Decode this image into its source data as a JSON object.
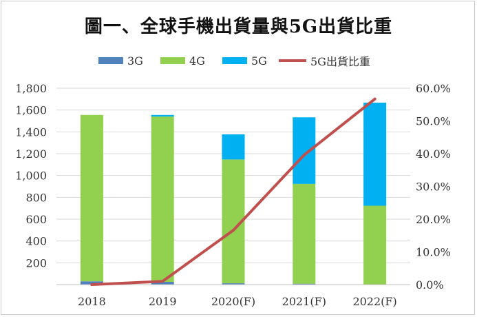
{
  "chart_data": {
    "type": "bar",
    "title": "圖一、全球手機出貨量與5G出貨比重",
    "categories": [
      "2018",
      "2019",
      "2020(F)",
      "2021(F)",
      "2022(F)"
    ],
    "series": [
      {
        "name": "3G",
        "kind": "stacked-bar",
        "axis": "left",
        "color": "#4f81bd",
        "values": [
          30,
          25,
          12,
          8,
          3
        ]
      },
      {
        "name": "4G",
        "kind": "stacked-bar",
        "axis": "left",
        "color": "#92d050",
        "values": [
          1525,
          1515,
          1135,
          915,
          720
        ]
      },
      {
        "name": "5G",
        "kind": "stacked-bar",
        "axis": "left",
        "color": "#00b0f0",
        "values": [
          0,
          15,
          230,
          610,
          945
        ]
      },
      {
        "name": "5G出貨比重",
        "kind": "line",
        "axis": "right",
        "color": "#c0504d",
        "values": [
          0.0,
          0.01,
          0.166,
          0.396,
          0.567
        ]
      }
    ],
    "y_left": {
      "min": 0,
      "max": 1800,
      "ticks": [
        "",
        "200",
        "400",
        "600",
        "800",
        "1,000",
        "1,200",
        "1,400",
        "1,600",
        "1,800"
      ]
    },
    "y_right": {
      "min": 0,
      "max": 0.6,
      "ticks": [
        "0.0%",
        "10.0%",
        "20.0%",
        "30.0%",
        "40.0%",
        "50.0%",
        "60.0%"
      ]
    },
    "grid": true,
    "legend_position": "top"
  }
}
